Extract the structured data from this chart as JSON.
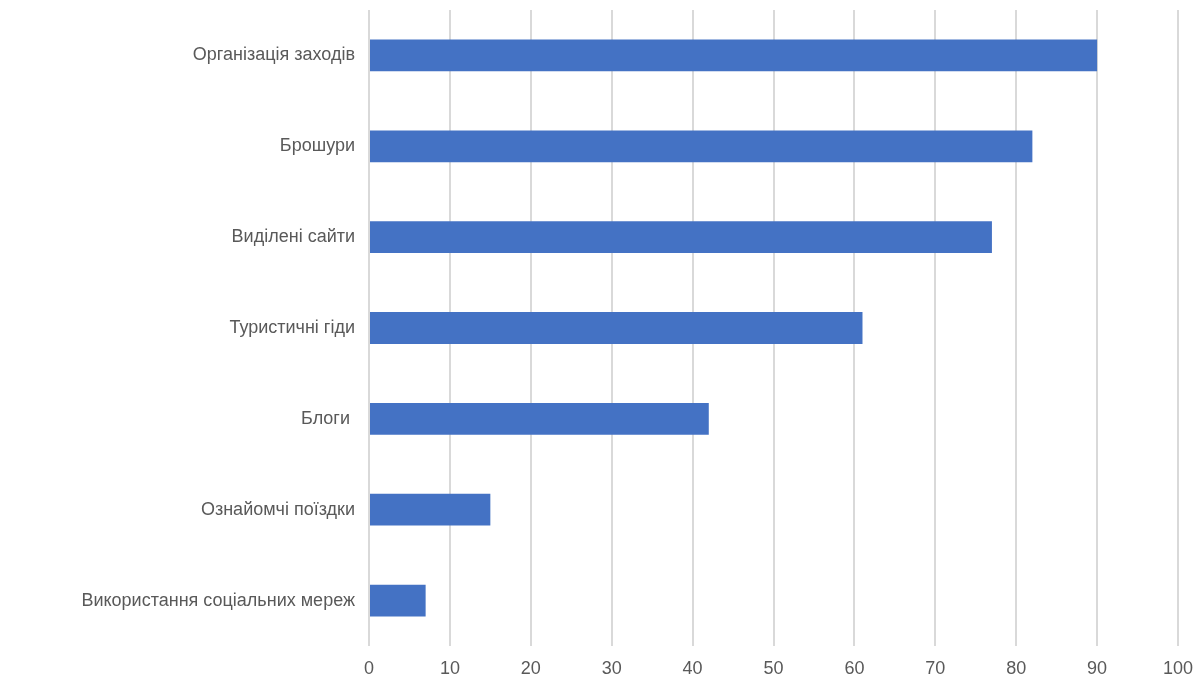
{
  "chart_data": {
    "type": "bar",
    "orientation": "horizontal",
    "categories": [
      "Організація заходів",
      "Брошури",
      "Виділені сайти",
      "Туристичні гіди",
      "Блоги ",
      "Ознайомчі поїздки",
      "Використання соціальних мереж"
    ],
    "values": [
      90,
      82,
      77,
      61,
      42,
      15,
      7
    ],
    "color": "#4472c4",
    "xlim": [
      0,
      100
    ],
    "xticks": [
      0,
      10,
      20,
      30,
      40,
      50,
      60,
      70,
      80,
      90,
      100
    ],
    "grid": "x",
    "legend": false
  }
}
